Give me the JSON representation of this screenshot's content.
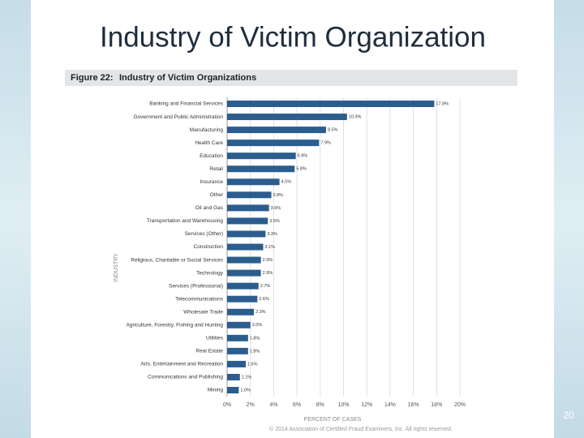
{
  "slide": {
    "title": "Industry of Victim Organization",
    "page_number": "20",
    "copyright": "© 2014 Association of Certified Fraud Examiners, Inc. All rights reserved."
  },
  "chart_data": {
    "type": "barh",
    "figure_label": "Figure 22:",
    "title": "Industry of Victim Organizations",
    "xlabel": "PERCENT OF CASES",
    "ylabel": "INDUSTRY",
    "categories": [
      "Banking and Financial Services",
      "Government and Public Administration",
      "Manufacturing",
      "Health Care",
      "Education",
      "Retail",
      "Insurance",
      "Other",
      "Oil and Gas",
      "Transportation and Warehousing",
      "Services (Other)",
      "Construction",
      "Religious, Charitable or Social Services",
      "Technology",
      "Services (Professional)",
      "Telecommunications",
      "Wholesale Trade",
      "Agriculture, Forestry, Fishing and Hunting",
      "Utilities",
      "Real Estate",
      "Arts, Entertainment and Recreation",
      "Communications and Publishing",
      "Mining"
    ],
    "values": [
      17.8,
      10.3,
      8.5,
      7.9,
      5.9,
      5.8,
      4.5,
      3.8,
      3.6,
      3.5,
      3.3,
      3.1,
      2.9,
      2.9,
      2.7,
      2.6,
      2.3,
      2.0,
      1.8,
      1.8,
      1.6,
      1.1,
      1.0
    ],
    "value_labels": [
      "17.8%",
      "10.3%",
      "8.5%",
      "7.9%",
      "5.9%",
      "5.8%",
      "4.5%",
      "3.8%",
      "3.6%",
      "3.5%",
      "3.3%",
      "3.1%",
      "2.9%",
      "2.9%",
      "2.7%",
      "2.6%",
      "2.3%",
      "2.0%",
      "1.8%",
      "1.8%",
      "1.6%",
      "1.1%",
      "1.0%"
    ],
    "color": "#2b5d8e",
    "xlim": [
      0,
      20
    ],
    "xticks": [
      {
        "value": 0,
        "label": "0%"
      },
      {
        "value": 2,
        "label": "2%"
      },
      {
        "value": 4,
        "label": "4%"
      },
      {
        "value": 6,
        "label": "6%"
      },
      {
        "value": 8,
        "label": "8%"
      },
      {
        "value": 10,
        "label": "10%"
      },
      {
        "value": 12,
        "label": "12%"
      },
      {
        "value": 14,
        "label": "14%"
      },
      {
        "value": 16,
        "label": "16%"
      },
      {
        "value": 18,
        "label": "18%"
      },
      {
        "value": 20,
        "label": "20%"
      }
    ],
    "grid": true
  }
}
